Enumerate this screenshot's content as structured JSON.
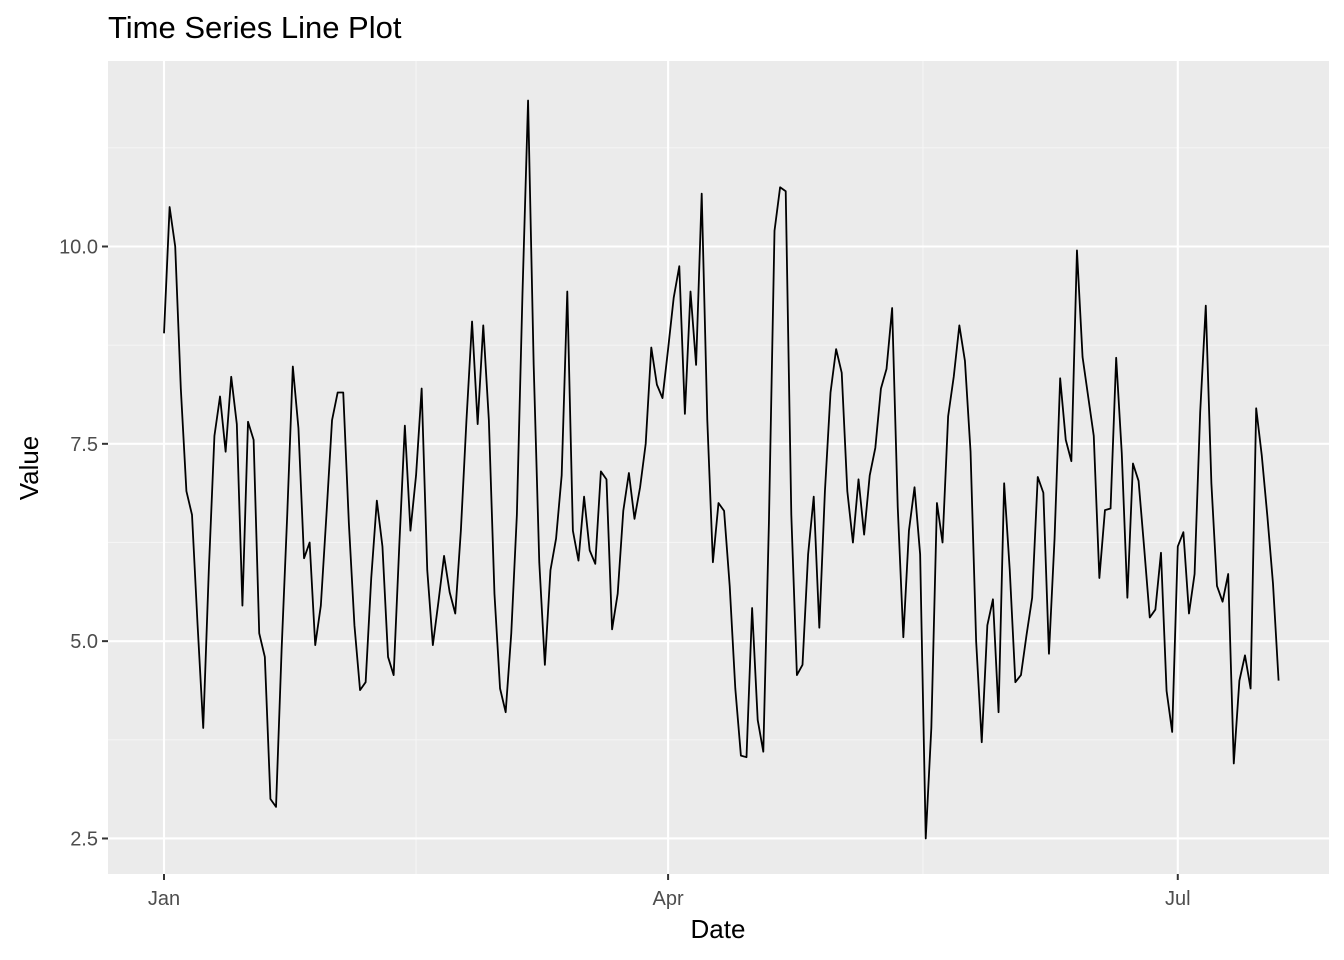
{
  "chart_data": {
    "type": "line",
    "title": "Time Series Line Plot",
    "xlabel": "Date",
    "ylabel": "Value",
    "grid": true,
    "legend": "none",
    "x_ticks": [
      {
        "label": "Jan",
        "day": 0
      },
      {
        "label": "Apr",
        "day": 90
      },
      {
        "label": "Jul",
        "day": 181
      }
    ],
    "x_minor_days": [
      45,
      135.5
    ],
    "xlim_days": [
      -10,
      208
    ],
    "y_ticks": [
      2.5,
      5.0,
      7.5,
      10.0
    ],
    "y_tick_labels": [
      "2.5",
      "5.0",
      "7.5",
      "10.0"
    ],
    "y_minor": [
      3.75,
      6.25,
      8.75,
      11.25
    ],
    "ylim": [
      2.05,
      12.35
    ],
    "series": [
      {
        "name": "Value",
        "color": "#000000",
        "start_day": 0,
        "values": [
          8.9,
          10.5,
          10.0,
          8.2,
          6.9,
          6.6,
          5.2,
          3.9,
          5.9,
          7.6,
          8.1,
          7.4,
          8.35,
          7.75,
          5.45,
          7.78,
          7.55,
          5.1,
          4.8,
          3.0,
          2.9,
          4.9,
          6.6,
          8.48,
          7.7,
          6.05,
          6.25,
          4.95,
          5.45,
          6.6,
          7.8,
          8.15,
          8.15,
          6.5,
          5.2,
          4.38,
          4.48,
          5.8,
          6.78,
          6.2,
          4.8,
          4.57,
          6.2,
          7.73,
          6.4,
          7.1,
          8.2,
          5.9,
          4.95,
          5.5,
          6.08,
          5.62,
          5.35,
          6.4,
          7.8,
          9.05,
          7.75,
          9.0,
          7.8,
          5.6,
          4.4,
          4.1,
          5.1,
          6.6,
          9.4,
          11.85,
          8.5,
          6.0,
          4.7,
          5.9,
          6.3,
          7.1,
          9.43,
          6.4,
          6.02,
          6.83,
          6.15,
          5.98,
          7.15,
          7.05,
          5.15,
          5.6,
          6.65,
          7.13,
          6.55,
          6.95,
          7.5,
          8.72,
          8.25,
          8.08,
          8.7,
          9.35,
          9.75,
          7.88,
          9.43,
          8.5,
          10.67,
          7.8,
          6.0,
          6.75,
          6.65,
          5.7,
          4.4,
          3.55,
          3.53,
          5.42,
          4.0,
          3.6,
          6.5,
          10.2,
          10.75,
          10.7,
          6.6,
          4.57,
          4.7,
          6.1,
          6.83,
          5.17,
          6.9,
          8.15,
          8.7,
          8.4,
          6.9,
          6.25,
          7.05,
          6.35,
          7.1,
          7.45,
          8.2,
          8.45,
          9.22,
          6.7,
          5.05,
          6.4,
          6.95,
          6.1,
          2.5,
          3.9,
          6.75,
          6.25,
          7.85,
          8.35,
          9.0,
          8.55,
          7.4,
          5.0,
          3.72,
          5.2,
          5.53,
          4.1,
          7.0,
          5.9,
          4.48,
          4.57,
          5.08,
          5.55,
          7.08,
          6.88,
          4.84,
          6.3,
          8.33,
          7.55,
          7.28,
          9.95,
          8.6,
          8.1,
          7.6,
          5.8,
          6.66,
          6.68,
          8.59,
          7.38,
          5.55,
          7.25,
          7.03,
          6.18,
          5.3,
          5.4,
          6.12,
          4.37,
          3.85,
          6.2,
          6.38,
          5.35,
          5.85,
          7.9,
          9.25,
          7.0,
          5.7,
          5.5,
          5.85,
          3.45,
          4.5,
          4.82,
          4.4,
          7.95,
          7.35,
          6.58,
          5.73,
          4.5
        ]
      }
    ]
  },
  "colors": {
    "panel_bg": "#EBEBEB",
    "grid_major": "#FFFFFF",
    "grid_minor": "#F5F5F5",
    "tick_text": "#4D4D4D",
    "line": "#000000"
  }
}
